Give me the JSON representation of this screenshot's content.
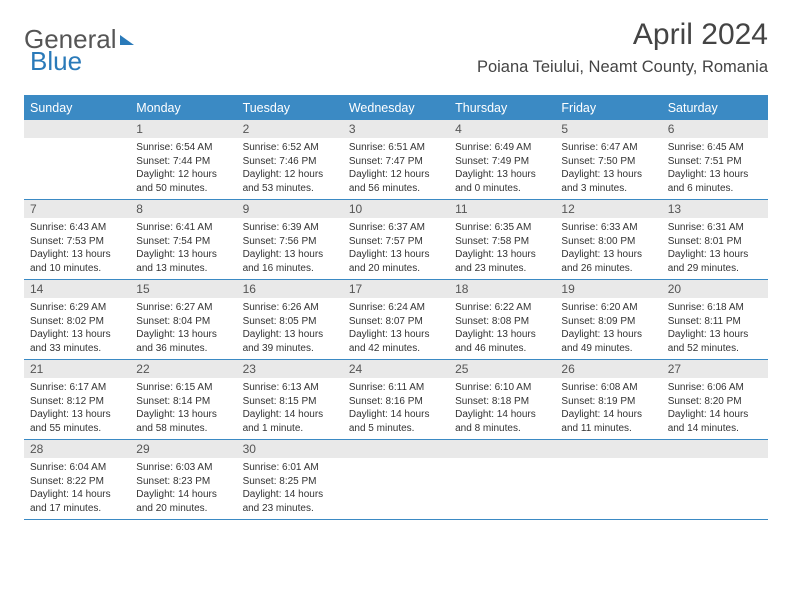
{
  "brand": {
    "part1": "General",
    "part2": "Blue"
  },
  "title": "April 2024",
  "location": "Poiana Teiului, Neamt County, Romania",
  "colors": {
    "header_bar": "#3b8ac4",
    "day_num_bg": "#e9e9e9",
    "text": "#333333",
    "title_text": "#444444"
  },
  "weekdays": [
    "Sunday",
    "Monday",
    "Tuesday",
    "Wednesday",
    "Thursday",
    "Friday",
    "Saturday"
  ],
  "weeks": [
    [
      {
        "num": "",
        "sunrise": "",
        "sunset": "",
        "daylight": ""
      },
      {
        "num": "1",
        "sunrise": "Sunrise: 6:54 AM",
        "sunset": "Sunset: 7:44 PM",
        "daylight": "Daylight: 12 hours and 50 minutes."
      },
      {
        "num": "2",
        "sunrise": "Sunrise: 6:52 AM",
        "sunset": "Sunset: 7:46 PM",
        "daylight": "Daylight: 12 hours and 53 minutes."
      },
      {
        "num": "3",
        "sunrise": "Sunrise: 6:51 AM",
        "sunset": "Sunset: 7:47 PM",
        "daylight": "Daylight: 12 hours and 56 minutes."
      },
      {
        "num": "4",
        "sunrise": "Sunrise: 6:49 AM",
        "sunset": "Sunset: 7:49 PM",
        "daylight": "Daylight: 13 hours and 0 minutes."
      },
      {
        "num": "5",
        "sunrise": "Sunrise: 6:47 AM",
        "sunset": "Sunset: 7:50 PM",
        "daylight": "Daylight: 13 hours and 3 minutes."
      },
      {
        "num": "6",
        "sunrise": "Sunrise: 6:45 AM",
        "sunset": "Sunset: 7:51 PM",
        "daylight": "Daylight: 13 hours and 6 minutes."
      }
    ],
    [
      {
        "num": "7",
        "sunrise": "Sunrise: 6:43 AM",
        "sunset": "Sunset: 7:53 PM",
        "daylight": "Daylight: 13 hours and 10 minutes."
      },
      {
        "num": "8",
        "sunrise": "Sunrise: 6:41 AM",
        "sunset": "Sunset: 7:54 PM",
        "daylight": "Daylight: 13 hours and 13 minutes."
      },
      {
        "num": "9",
        "sunrise": "Sunrise: 6:39 AM",
        "sunset": "Sunset: 7:56 PM",
        "daylight": "Daylight: 13 hours and 16 minutes."
      },
      {
        "num": "10",
        "sunrise": "Sunrise: 6:37 AM",
        "sunset": "Sunset: 7:57 PM",
        "daylight": "Daylight: 13 hours and 20 minutes."
      },
      {
        "num": "11",
        "sunrise": "Sunrise: 6:35 AM",
        "sunset": "Sunset: 7:58 PM",
        "daylight": "Daylight: 13 hours and 23 minutes."
      },
      {
        "num": "12",
        "sunrise": "Sunrise: 6:33 AM",
        "sunset": "Sunset: 8:00 PM",
        "daylight": "Daylight: 13 hours and 26 minutes."
      },
      {
        "num": "13",
        "sunrise": "Sunrise: 6:31 AM",
        "sunset": "Sunset: 8:01 PM",
        "daylight": "Daylight: 13 hours and 29 minutes."
      }
    ],
    [
      {
        "num": "14",
        "sunrise": "Sunrise: 6:29 AM",
        "sunset": "Sunset: 8:02 PM",
        "daylight": "Daylight: 13 hours and 33 minutes."
      },
      {
        "num": "15",
        "sunrise": "Sunrise: 6:27 AM",
        "sunset": "Sunset: 8:04 PM",
        "daylight": "Daylight: 13 hours and 36 minutes."
      },
      {
        "num": "16",
        "sunrise": "Sunrise: 6:26 AM",
        "sunset": "Sunset: 8:05 PM",
        "daylight": "Daylight: 13 hours and 39 minutes."
      },
      {
        "num": "17",
        "sunrise": "Sunrise: 6:24 AM",
        "sunset": "Sunset: 8:07 PM",
        "daylight": "Daylight: 13 hours and 42 minutes."
      },
      {
        "num": "18",
        "sunrise": "Sunrise: 6:22 AM",
        "sunset": "Sunset: 8:08 PM",
        "daylight": "Daylight: 13 hours and 46 minutes."
      },
      {
        "num": "19",
        "sunrise": "Sunrise: 6:20 AM",
        "sunset": "Sunset: 8:09 PM",
        "daylight": "Daylight: 13 hours and 49 minutes."
      },
      {
        "num": "20",
        "sunrise": "Sunrise: 6:18 AM",
        "sunset": "Sunset: 8:11 PM",
        "daylight": "Daylight: 13 hours and 52 minutes."
      }
    ],
    [
      {
        "num": "21",
        "sunrise": "Sunrise: 6:17 AM",
        "sunset": "Sunset: 8:12 PM",
        "daylight": "Daylight: 13 hours and 55 minutes."
      },
      {
        "num": "22",
        "sunrise": "Sunrise: 6:15 AM",
        "sunset": "Sunset: 8:14 PM",
        "daylight": "Daylight: 13 hours and 58 minutes."
      },
      {
        "num": "23",
        "sunrise": "Sunrise: 6:13 AM",
        "sunset": "Sunset: 8:15 PM",
        "daylight": "Daylight: 14 hours and 1 minute."
      },
      {
        "num": "24",
        "sunrise": "Sunrise: 6:11 AM",
        "sunset": "Sunset: 8:16 PM",
        "daylight": "Daylight: 14 hours and 5 minutes."
      },
      {
        "num": "25",
        "sunrise": "Sunrise: 6:10 AM",
        "sunset": "Sunset: 8:18 PM",
        "daylight": "Daylight: 14 hours and 8 minutes."
      },
      {
        "num": "26",
        "sunrise": "Sunrise: 6:08 AM",
        "sunset": "Sunset: 8:19 PM",
        "daylight": "Daylight: 14 hours and 11 minutes."
      },
      {
        "num": "27",
        "sunrise": "Sunrise: 6:06 AM",
        "sunset": "Sunset: 8:20 PM",
        "daylight": "Daylight: 14 hours and 14 minutes."
      }
    ],
    [
      {
        "num": "28",
        "sunrise": "Sunrise: 6:04 AM",
        "sunset": "Sunset: 8:22 PM",
        "daylight": "Daylight: 14 hours and 17 minutes."
      },
      {
        "num": "29",
        "sunrise": "Sunrise: 6:03 AM",
        "sunset": "Sunset: 8:23 PM",
        "daylight": "Daylight: 14 hours and 20 minutes."
      },
      {
        "num": "30",
        "sunrise": "Sunrise: 6:01 AM",
        "sunset": "Sunset: 8:25 PM",
        "daylight": "Daylight: 14 hours and 23 minutes."
      },
      {
        "num": "",
        "sunrise": "",
        "sunset": "",
        "daylight": ""
      },
      {
        "num": "",
        "sunrise": "",
        "sunset": "",
        "daylight": ""
      },
      {
        "num": "",
        "sunrise": "",
        "sunset": "",
        "daylight": ""
      },
      {
        "num": "",
        "sunrise": "",
        "sunset": "",
        "daylight": ""
      }
    ]
  ]
}
